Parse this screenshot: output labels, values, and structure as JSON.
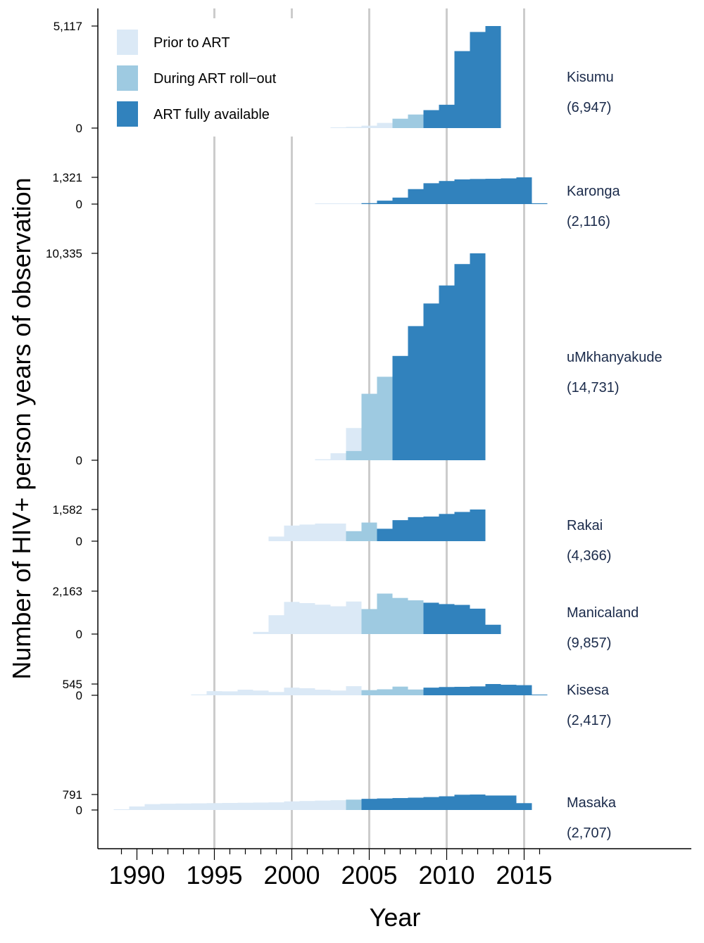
{
  "chart_data": {
    "type": "bar",
    "title": "",
    "xlabel": "Year",
    "ylabel": "Number of HIV+ person years of observation",
    "xlim": [
      1988.5,
      2026
    ],
    "x_ticks": [
      1990,
      1995,
      2000,
      2005,
      2010,
      2015
    ],
    "x_tick_labels": [
      "1990",
      "1995",
      "2000",
      "2005",
      "2010",
      "2015"
    ],
    "gridlines_x": [
      1995,
      2000,
      2005,
      2010,
      2015
    ],
    "legend": {
      "placement": "top-left",
      "entries": [
        {
          "key": "prior",
          "label": "Prior to ART",
          "color": "#dbe9f6"
        },
        {
          "key": "rollout",
          "label": "During ART roll−out",
          "color": "#9ecae1"
        },
        {
          "key": "full",
          "label": "ART fully available",
          "color": "#3182bd"
        }
      ]
    },
    "colors": {
      "prior": "#dbe9f6",
      "rollout": "#9ecae1",
      "full": "#3182bd",
      "grid": "#cccccc",
      "site_text": "#1a2a4a"
    },
    "panels": [
      {
        "site": "Kisumu",
        "total": "(6,947)",
        "max": 5117,
        "max_label": "5,117",
        "zero_label": "0",
        "bars": [
          {
            "x": 2003,
            "v": 20,
            "p": "prior"
          },
          {
            "x": 2004,
            "v": 60,
            "p": "prior"
          },
          {
            "x": 2005,
            "v": 120,
            "p": "prior"
          },
          {
            "x": 2006,
            "v": 260,
            "p": "prior"
          },
          {
            "x": 2007,
            "v": 470,
            "p": "rollout"
          },
          {
            "x": 2008,
            "v": 680,
            "p": "rollout"
          },
          {
            "x": 2009,
            "v": 900,
            "p": "full"
          },
          {
            "x": 2010,
            "v": 1170,
            "p": "full"
          },
          {
            "x": 2011,
            "v": 3860,
            "p": "full"
          },
          {
            "x": 2012,
            "v": 4820,
            "p": "full"
          },
          {
            "x": 2013,
            "v": 5117,
            "p": "full"
          }
        ]
      },
      {
        "site": "Karonga",
        "total": "(2,116)",
        "max": 1321,
        "max_label": "1,321",
        "zero_label": "0",
        "bars": [
          {
            "x": 2002,
            "v": 5,
            "p": "prior"
          },
          {
            "x": 2003,
            "v": 5,
            "p": "prior"
          },
          {
            "x": 2004,
            "v": 10,
            "p": "prior"
          },
          {
            "x": 2005,
            "v": 45,
            "p": "full"
          },
          {
            "x": 2006,
            "v": 170,
            "p": "full"
          },
          {
            "x": 2007,
            "v": 320,
            "p": "full"
          },
          {
            "x": 2008,
            "v": 740,
            "p": "full"
          },
          {
            "x": 2009,
            "v": 1030,
            "p": "full"
          },
          {
            "x": 2010,
            "v": 1140,
            "p": "full"
          },
          {
            "x": 2011,
            "v": 1220,
            "p": "full"
          },
          {
            "x": 2012,
            "v": 1240,
            "p": "full"
          },
          {
            "x": 2013,
            "v": 1250,
            "p": "full"
          },
          {
            "x": 2014,
            "v": 1270,
            "p": "full"
          },
          {
            "x": 2015,
            "v": 1321,
            "p": "full"
          },
          {
            "x": 2016,
            "v": 40,
            "p": "full"
          }
        ]
      },
      {
        "site": "uMkhanyakude",
        "total": "(14,731)",
        "max": 10335,
        "max_label": "10,335",
        "zero_label": "0",
        "bars": [
          {
            "x": 2002,
            "v": 50,
            "p": "prior"
          },
          {
            "x": 2003,
            "v": 350,
            "p": "prior"
          },
          {
            "x": 2004,
            "v": 1610,
            "p": "prior"
          },
          {
            "x": 2004,
            "v": 460,
            "p": "rollout"
          },
          {
            "x": 2005,
            "v": 3320,
            "p": "rollout"
          },
          {
            "x": 2006,
            "v": 4170,
            "p": "rollout"
          },
          {
            "x": 2007,
            "v": 5210,
            "p": "full"
          },
          {
            "x": 2008,
            "v": 6700,
            "p": "full"
          },
          {
            "x": 2009,
            "v": 7830,
            "p": "full"
          },
          {
            "x": 2010,
            "v": 8730,
            "p": "full"
          },
          {
            "x": 2011,
            "v": 9800,
            "p": "full"
          },
          {
            "x": 2012,
            "v": 10335,
            "p": "full"
          }
        ]
      },
      {
        "site": "Rakai",
        "total": "(4,366)",
        "max": 1582,
        "max_label": "1,582",
        "zero_label": "0",
        "bars": [
          {
            "x": 1999,
            "v": 230,
            "p": "prior"
          },
          {
            "x": 2000,
            "v": 780,
            "p": "prior"
          },
          {
            "x": 2001,
            "v": 830,
            "p": "prior"
          },
          {
            "x": 2002,
            "v": 880,
            "p": "prior"
          },
          {
            "x": 2003,
            "v": 880,
            "p": "prior"
          },
          {
            "x": 2004,
            "v": 500,
            "p": "rollout"
          },
          {
            "x": 2005,
            "v": 930,
            "p": "rollout"
          },
          {
            "x": 2006,
            "v": 620,
            "p": "full"
          },
          {
            "x": 2007,
            "v": 1050,
            "p": "full"
          },
          {
            "x": 2008,
            "v": 1200,
            "p": "full"
          },
          {
            "x": 2009,
            "v": 1230,
            "p": "full"
          },
          {
            "x": 2010,
            "v": 1360,
            "p": "full"
          },
          {
            "x": 2011,
            "v": 1460,
            "p": "full"
          },
          {
            "x": 2012,
            "v": 1582,
            "p": "full"
          }
        ]
      },
      {
        "site": "Manicaland",
        "total": "(9,857)",
        "max": 2163,
        "max_label": "2,163",
        "zero_label": "0",
        "bars": [
          {
            "x": 1998,
            "v": 110,
            "p": "prior"
          },
          {
            "x": 1999,
            "v": 950,
            "p": "prior"
          },
          {
            "x": 2000,
            "v": 1620,
            "p": "prior"
          },
          {
            "x": 2001,
            "v": 1560,
            "p": "prior"
          },
          {
            "x": 2002,
            "v": 1480,
            "p": "prior"
          },
          {
            "x": 2003,
            "v": 1400,
            "p": "prior"
          },
          {
            "x": 2004,
            "v": 1640,
            "p": "prior"
          },
          {
            "x": 2005,
            "v": 1260,
            "p": "rollout"
          },
          {
            "x": 2006,
            "v": 2040,
            "p": "rollout"
          },
          {
            "x": 2007,
            "v": 1820,
            "p": "rollout"
          },
          {
            "x": 2008,
            "v": 1700,
            "p": "rollout"
          },
          {
            "x": 2009,
            "v": 1580,
            "p": "full"
          },
          {
            "x": 2010,
            "v": 1510,
            "p": "full"
          },
          {
            "x": 2011,
            "v": 1470,
            "p": "full"
          },
          {
            "x": 2012,
            "v": 1280,
            "p": "full"
          },
          {
            "x": 2013,
            "v": 470,
            "p": "full"
          }
        ]
      },
      {
        "site": "Kisesa",
        "total": "(2,417)",
        "max": 545,
        "max_label": "545",
        "zero_label": "0",
        "bars": [
          {
            "x": 1994,
            "v": 40,
            "p": "prior"
          },
          {
            "x": 1995,
            "v": 200,
            "p": "prior"
          },
          {
            "x": 1996,
            "v": 190,
            "p": "prior"
          },
          {
            "x": 1997,
            "v": 270,
            "p": "prior"
          },
          {
            "x": 1998,
            "v": 230,
            "p": "prior"
          },
          {
            "x": 1999,
            "v": 160,
            "p": "prior"
          },
          {
            "x": 2000,
            "v": 370,
            "p": "prior"
          },
          {
            "x": 2001,
            "v": 340,
            "p": "prior"
          },
          {
            "x": 2002,
            "v": 270,
            "p": "prior"
          },
          {
            "x": 2003,
            "v": 230,
            "p": "prior"
          },
          {
            "x": 2004,
            "v": 440,
            "p": "prior"
          },
          {
            "x": 2005,
            "v": 250,
            "p": "rollout"
          },
          {
            "x": 2006,
            "v": 290,
            "p": "rollout"
          },
          {
            "x": 2007,
            "v": 420,
            "p": "rollout"
          },
          {
            "x": 2008,
            "v": 150,
            "p": "full"
          },
          {
            "x": 2008,
            "v": 280,
            "p": "rollout"
          },
          {
            "x": 2009,
            "v": 370,
            "p": "full"
          },
          {
            "x": 2010,
            "v": 400,
            "p": "full"
          },
          {
            "x": 2011,
            "v": 410,
            "p": "full"
          },
          {
            "x": 2012,
            "v": 430,
            "p": "full"
          },
          {
            "x": 2013,
            "v": 545,
            "p": "full"
          },
          {
            "x": 2014,
            "v": 510,
            "p": "full"
          },
          {
            "x": 2015,
            "v": 490,
            "p": "full"
          },
          {
            "x": 2016,
            "v": 20,
            "p": "full"
          }
        ]
      },
      {
        "site": "Masaka",
        "total": "(2,707)",
        "max": 791,
        "max_label": "791",
        "zero_label": "0",
        "bars": [
          {
            "x": 1989,
            "v": 20,
            "p": "prior"
          },
          {
            "x": 1990,
            "v": 180,
            "p": "prior"
          },
          {
            "x": 1991,
            "v": 300,
            "p": "prior"
          },
          {
            "x": 1992,
            "v": 320,
            "p": "prior"
          },
          {
            "x": 1993,
            "v": 330,
            "p": "prior"
          },
          {
            "x": 1994,
            "v": 340,
            "p": "prior"
          },
          {
            "x": 1995,
            "v": 350,
            "p": "prior"
          },
          {
            "x": 1996,
            "v": 360,
            "p": "prior"
          },
          {
            "x": 1997,
            "v": 370,
            "p": "prior"
          },
          {
            "x": 1998,
            "v": 380,
            "p": "prior"
          },
          {
            "x": 1999,
            "v": 390,
            "p": "prior"
          },
          {
            "x": 2000,
            "v": 440,
            "p": "prior"
          },
          {
            "x": 2001,
            "v": 460,
            "p": "prior"
          },
          {
            "x": 2002,
            "v": 480,
            "p": "prior"
          },
          {
            "x": 2003,
            "v": 500,
            "p": "prior"
          },
          {
            "x": 2004,
            "v": 530,
            "p": "rollout"
          },
          {
            "x": 2005,
            "v": 570,
            "p": "full"
          },
          {
            "x": 2006,
            "v": 590,
            "p": "full"
          },
          {
            "x": 2007,
            "v": 610,
            "p": "full"
          },
          {
            "x": 2008,
            "v": 630,
            "p": "full"
          },
          {
            "x": 2009,
            "v": 660,
            "p": "full"
          },
          {
            "x": 2010,
            "v": 700,
            "p": "full"
          },
          {
            "x": 2011,
            "v": 780,
            "p": "full"
          },
          {
            "x": 2012,
            "v": 790,
            "p": "full"
          },
          {
            "x": 2013,
            "v": 740,
            "p": "full"
          },
          {
            "x": 2014,
            "v": 740,
            "p": "full"
          },
          {
            "x": 2015,
            "v": 350,
            "p": "full"
          }
        ]
      }
    ]
  }
}
